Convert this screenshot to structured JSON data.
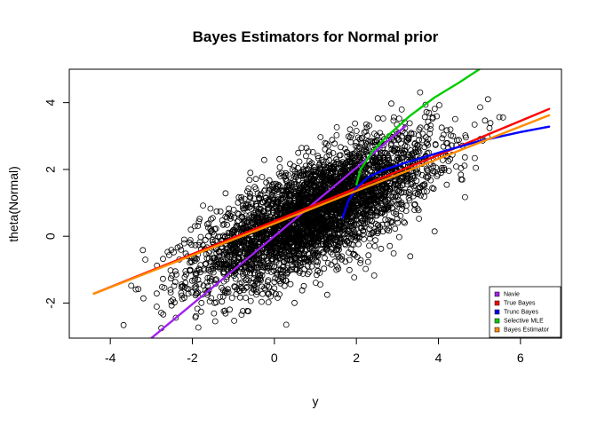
{
  "chart_data": {
    "type": "scatter",
    "title": "Bayes Estimators for Normal prior",
    "xlabel": "y",
    "ylabel": "theta(Normal)",
    "xlim": [
      -5.0,
      7.0
    ],
    "ylim": [
      -3.05,
      5.0
    ],
    "xticks": [
      "-4",
      "-2",
      "0",
      "2",
      "4",
      "6"
    ],
    "xtick_values": [
      -4,
      -2,
      0,
      2,
      4,
      6
    ],
    "yticks": [
      "-2",
      "0",
      "2",
      "4"
    ],
    "ytick_values": [
      -2,
      0,
      2,
      4
    ],
    "grid": false,
    "legend_position": "bottom-right",
    "scatter_cloud": {
      "description_units": "data units",
      "x_center": 1.0,
      "y_center": 0.7,
      "x_sd": 1.4,
      "y_sd": 1.1,
      "correlation": 0.72,
      "approx_points": 4000,
      "x_range": [
        -4.4,
        6.7
      ],
      "y_range": [
        -2.8,
        4.6
      ],
      "marker": "open-circle",
      "color": "#000000"
    },
    "series": [
      {
        "name": "Navie",
        "color": "#A020F0",
        "x": [
          -3.0,
          0.0,
          2.0,
          3.2
        ],
        "y": [
          -3.05,
          0.0,
          2.05,
          3.3
        ]
      },
      {
        "name": "True Bayes",
        "color": "#FF0000",
        "x": [
          -4.4,
          0.0,
          2.0,
          4.0,
          6.7
        ],
        "y": [
          -1.72,
          0.45,
          1.44,
          2.43,
          3.81
        ]
      },
      {
        "name": "Trunc Bayes",
        "color": "#0000FF",
        "x": [
          1.66,
          1.8,
          2.0,
          2.3,
          2.7,
          3.2,
          4.0,
          5.0,
          6.0,
          6.7
        ],
        "y": [
          0.55,
          1.05,
          1.45,
          1.78,
          2.0,
          2.2,
          2.5,
          2.85,
          3.12,
          3.28
        ]
      },
      {
        "name": "Selective MLE",
        "color": "#00CD00",
        "x": [
          2.0,
          2.1,
          2.4,
          2.8,
          3.3,
          3.9,
          4.5,
          5.0
        ],
        "y": [
          1.55,
          2.0,
          2.55,
          3.05,
          3.6,
          4.15,
          4.6,
          5.0
        ]
      },
      {
        "name": "Bayes Estimator",
        "color": "#FF8C00",
        "x": [
          -4.4,
          0.0,
          2.0,
          4.0,
          6.7
        ],
        "y": [
          -1.72,
          0.38,
          1.36,
          2.32,
          3.62
        ]
      }
    ]
  }
}
